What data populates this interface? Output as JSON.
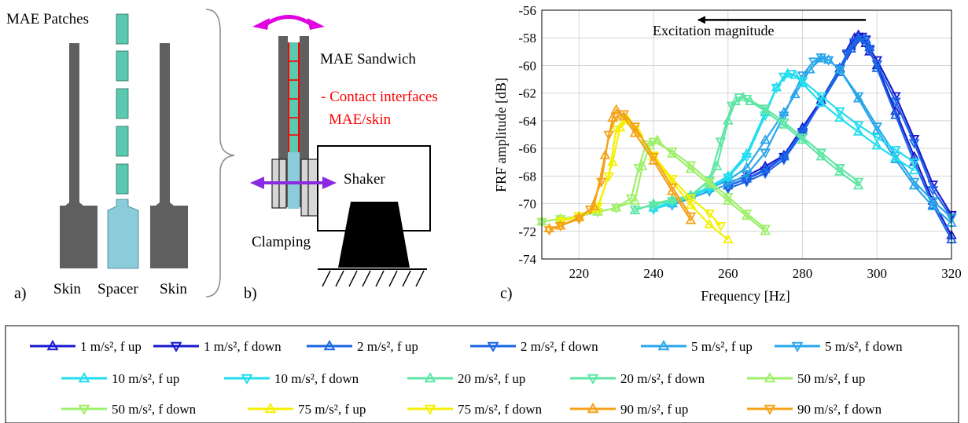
{
  "panel_a": {
    "title": "MAE Patches",
    "labels": [
      "Skin",
      "Spacer",
      "Skin"
    ],
    "tag": "a)",
    "colors": {
      "skin": "#5f5f5f",
      "spacer": "#8ccbd9",
      "patch": "#59c9b0"
    }
  },
  "panel_b": {
    "sandwich": "MAE Sandwich",
    "contact_line1": "- Contact interfaces",
    "contact_line2": "MAE/skin",
    "shaker": "Shaker",
    "clamping": "Clamping",
    "tag": "b)",
    "colors": {
      "arrow": "#e000e0",
      "contact": "#ff0000"
    }
  },
  "panel_c": {
    "tag": "c)"
  },
  "chart_data": {
    "type": "line",
    "xlabel": "Frequency [Hz]",
    "ylabel": "FRF amplitude  [dB]",
    "xlim": [
      210,
      320
    ],
    "ylim": [
      -74,
      -56
    ],
    "xticks": [
      220,
      240,
      260,
      280,
      300,
      320
    ],
    "yticks": [
      -56,
      -58,
      -60,
      -62,
      -64,
      -66,
      -68,
      -70,
      -72,
      -74
    ],
    "grid": true,
    "legend_position": "below",
    "annotation": "Excitation magnitude",
    "annotation_arrow": {
      "from": [
        297,
        -56.7
      ],
      "to": [
        252,
        -56.7
      ]
    },
    "series": [
      {
        "name": "1 m/s², f up",
        "color": "#1a1ad0",
        "marker": "up",
        "x": [
          260,
          265,
          270,
          275,
          280,
          285,
          290,
          293,
          294,
          295,
          296,
          297,
          298,
          300,
          305,
          310,
          315,
          320
        ],
        "y": [
          -68.5,
          -68.0,
          -67.3,
          -66.5,
          -64.5,
          -62.5,
          -60.2,
          -58.6,
          -58.0,
          -57.8,
          -58.0,
          -58.4,
          -59.0,
          -60.0,
          -63.3,
          -66.6,
          -69.8,
          -72.3
        ]
      },
      {
        "name": "1 m/s², f down",
        "color": "#1a1ad0",
        "marker": "down",
        "x": [
          320,
          315,
          310,
          305,
          300,
          298,
          297,
          296,
          295,
          294,
          292,
          290,
          285,
          280,
          275,
          270,
          265,
          260
        ],
        "y": [
          -70.8,
          -68.6,
          -65.3,
          -62.2,
          -59.6,
          -58.8,
          -58.1,
          -57.9,
          -58.0,
          -58.4,
          -59.2,
          -60.3,
          -62.6,
          -64.8,
          -66.6,
          -67.6,
          -68.2,
          -68.7
        ]
      },
      {
        "name": "2 m/s², f up",
        "color": "#1a66e6",
        "marker": "up",
        "x": [
          260,
          265,
          270,
          275,
          280,
          285,
          290,
          293,
          295,
          297,
          298,
          300,
          305,
          310,
          315,
          320
        ],
        "y": [
          -68.7,
          -68.2,
          -67.5,
          -66.6,
          -64.7,
          -62.7,
          -60.5,
          -58.8,
          -58.0,
          -58.1,
          -58.7,
          -60.2,
          -63.6,
          -67.0,
          -70.1,
          -72.6
        ]
      },
      {
        "name": "2 m/s², f down",
        "color": "#1a66e6",
        "marker": "down",
        "x": [
          320,
          315,
          310,
          305,
          300,
          298,
          296,
          294,
          292,
          290,
          285,
          280,
          275,
          270,
          265,
          260
        ],
        "y": [
          -71.0,
          -69.0,
          -65.6,
          -62.6,
          -59.9,
          -58.9,
          -58.1,
          -58.3,
          -59.1,
          -60.2,
          -62.6,
          -64.9,
          -66.8,
          -67.8,
          -68.4,
          -68.9
        ]
      },
      {
        "name": "5 m/s², f up",
        "color": "#2aa6ea",
        "marker": "up",
        "x": [
          245,
          250,
          255,
          260,
          265,
          270,
          275,
          278,
          282,
          285,
          287,
          290,
          295,
          300,
          305,
          310,
          315,
          320
        ],
        "y": [
          -70.0,
          -69.4,
          -68.9,
          -68.3,
          -67.4,
          -65.4,
          -63.4,
          -62.1,
          -60.3,
          -59.5,
          -59.6,
          -60.3,
          -62.4,
          -64.7,
          -66.8,
          -68.7,
          -70.2,
          -71.4
        ]
      },
      {
        "name": "5 m/s², f down",
        "color": "#2aa6ea",
        "marker": "down",
        "x": [
          320,
          315,
          310,
          305,
          300,
          295,
          290,
          287,
          285,
          283,
          280,
          275,
          270,
          265,
          260,
          255,
          250,
          245
        ],
        "y": [
          -71.0,
          -69.8,
          -68.4,
          -66.5,
          -64.4,
          -62.2,
          -60.3,
          -59.6,
          -59.4,
          -59.7,
          -60.7,
          -63.6,
          -66.3,
          -67.9,
          -68.6,
          -69.1,
          -69.6,
          -70.1
        ]
      },
      {
        "name": "10 m/s², f up",
        "color": "#22ddee",
        "marker": "up",
        "x": [
          240,
          245,
          250,
          255,
          260,
          265,
          270,
          273,
          276,
          278,
          280,
          285,
          290,
          295,
          300,
          305,
          310
        ],
        "y": [
          -70.3,
          -69.9,
          -69.4,
          -68.8,
          -68.0,
          -66.4,
          -63.4,
          -61.6,
          -60.6,
          -60.7,
          -61.3,
          -62.7,
          -63.8,
          -64.8,
          -65.8,
          -66.7,
          -67.6
        ]
      },
      {
        "name": "10 m/s², f down",
        "color": "#22ddee",
        "marker": "down",
        "x": [
          310,
          305,
          300,
          295,
          290,
          285,
          280,
          277,
          275,
          273,
          270,
          265,
          260,
          255,
          250,
          245,
          240
        ],
        "y": [
          -67.0,
          -66.1,
          -65.2,
          -64.3,
          -63.3,
          -62.2,
          -61.1,
          -60.6,
          -60.8,
          -61.6,
          -63.6,
          -66.6,
          -68.1,
          -68.9,
          -69.5,
          -70.0,
          -70.4
        ]
      },
      {
        "name": "20 m/s², f up",
        "color": "#5ee6a4",
        "marker": "up",
        "x": [
          235,
          240,
          245,
          250,
          255,
          257,
          260,
          262,
          264,
          266,
          270,
          275,
          280,
          285,
          290,
          295
        ],
        "y": [
          -70.5,
          -70.0,
          -69.7,
          -69.4,
          -68.3,
          -67.3,
          -64.0,
          -62.6,
          -62.3,
          -62.6,
          -63.3,
          -64.3,
          -65.4,
          -66.6,
          -67.7,
          -68.7
        ]
      },
      {
        "name": "20 m/s², f down",
        "color": "#5ee6a4",
        "marker": "down",
        "x": [
          295,
          290,
          285,
          280,
          275,
          270,
          265,
          263,
          261,
          258,
          255,
          250,
          245,
          240,
          235
        ],
        "y": [
          -68.4,
          -67.4,
          -66.3,
          -65.2,
          -64.1,
          -63.1,
          -62.4,
          -62.3,
          -62.9,
          -65.5,
          -68.3,
          -69.5,
          -69.8,
          -70.1,
          -70.4
        ]
      },
      {
        "name": "50 m/s², f up",
        "color": "#9ef06a",
        "marker": "up",
        "x": [
          210,
          215,
          220,
          225,
          230,
          235,
          237,
          239,
          241,
          245,
          250,
          255,
          260,
          265,
          270
        ],
        "y": [
          -71.3,
          -71.1,
          -70.9,
          -70.6,
          -70.3,
          -69.8,
          -67.3,
          -65.8,
          -65.4,
          -66.4,
          -67.5,
          -68.6,
          -69.8,
          -70.9,
          -72.0
        ]
      },
      {
        "name": "50 m/s², f down",
        "color": "#9ef06a",
        "marker": "down",
        "x": [
          270,
          265,
          260,
          255,
          250,
          245,
          240,
          238,
          236,
          234,
          230,
          225,
          220,
          215,
          210
        ],
        "y": [
          -71.8,
          -70.7,
          -69.5,
          -68.4,
          -67.2,
          -66.2,
          -65.5,
          -65.7,
          -67.4,
          -69.6,
          -70.3,
          -70.6,
          -70.9,
          -71.1,
          -71.3
        ]
      },
      {
        "name": "75 m/s², f up",
        "color": "#f4f000",
        "marker": "up",
        "x": [
          215,
          220,
          225,
          229,
          231,
          233,
          236,
          240,
          245,
          250,
          255,
          260
        ],
        "y": [
          -71.2,
          -70.9,
          -70.4,
          -67.0,
          -64.5,
          -63.9,
          -64.9,
          -66.6,
          -68.4,
          -70.1,
          -71.5,
          -72.6
        ]
      },
      {
        "name": "75 m/s², f down",
        "color": "#f4f000",
        "marker": "down",
        "x": [
          258,
          255,
          250,
          245,
          240,
          235,
          232,
          230,
          228,
          225,
          220,
          215
        ],
        "y": [
          -71.6,
          -70.7,
          -69.6,
          -68.2,
          -66.5,
          -64.6,
          -64.0,
          -64.6,
          -68.0,
          -70.2,
          -70.9,
          -71.3
        ]
      },
      {
        "name": "90 m/s², f up",
        "color": "#f4a21a",
        "marker": "up",
        "x": [
          212,
          215,
          220,
          224,
          227,
          229,
          230,
          232,
          235,
          240,
          245,
          250
        ],
        "y": [
          -71.8,
          -71.6,
          -71.0,
          -70.2,
          -66.5,
          -63.8,
          -63.2,
          -63.7,
          -64.9,
          -66.9,
          -69.1,
          -71.2
        ]
      },
      {
        "name": "90 m/s², f down",
        "color": "#f4a21a",
        "marker": "down",
        "x": [
          250,
          245,
          240,
          235,
          232,
          230,
          228,
          226,
          223,
          220,
          215,
          212
        ],
        "y": [
          -70.9,
          -68.8,
          -66.6,
          -64.4,
          -63.5,
          -63.7,
          -65.0,
          -68.4,
          -70.4,
          -71.1,
          -71.6,
          -71.9
        ]
      }
    ]
  }
}
